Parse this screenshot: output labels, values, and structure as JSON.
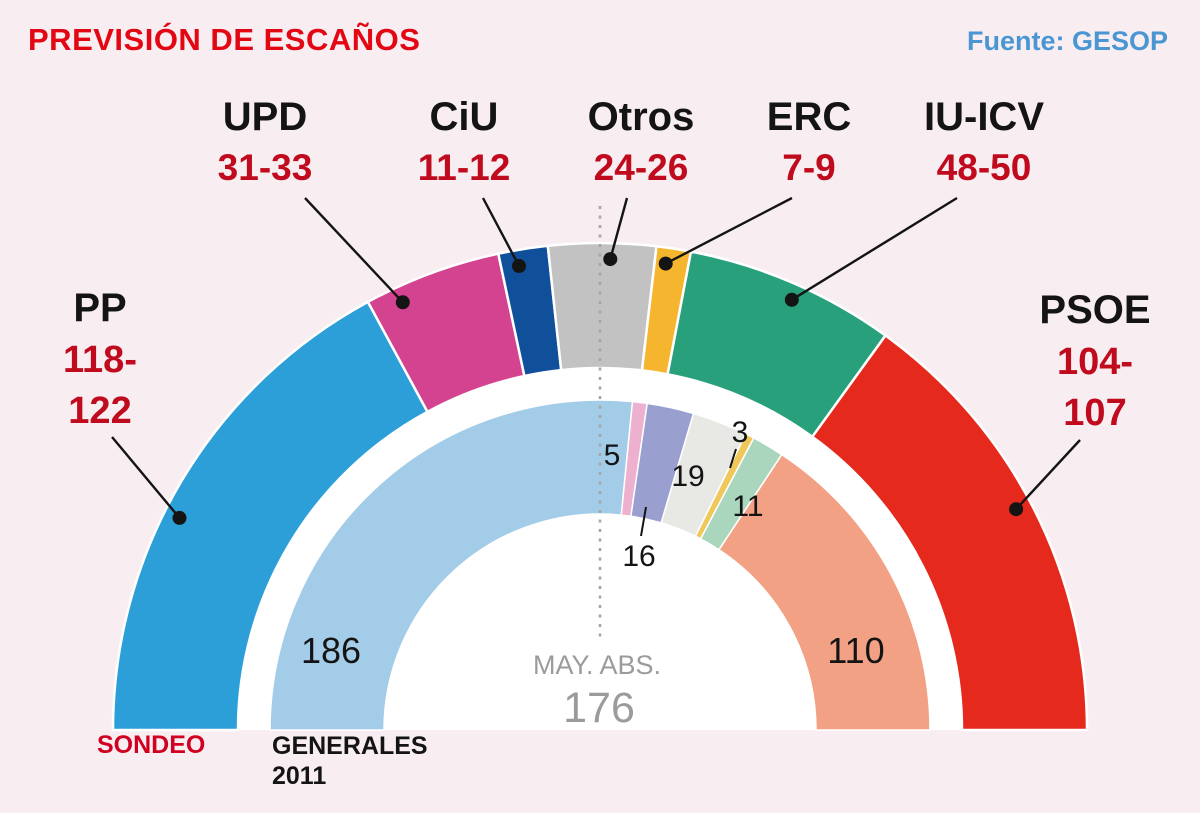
{
  "header": {
    "title": "PREVISIÓN DE ESCAÑOS",
    "source": "Fuente: GESOP"
  },
  "colors": {
    "background": "#f8eef2",
    "title_red": "#e30613",
    "source_blue": "#4a96d2",
    "range_red": "#c00a1d",
    "text_black": "#141414",
    "majority_gray": "#9b9b9b",
    "sondeo_red": "#d10020"
  },
  "chart_data": {
    "type": "hemicycle",
    "title": "PREVISIÓN DE ESCAÑOS",
    "total_seats": 350,
    "majority_label": "MAY. ABS.",
    "majority_value": "176",
    "rings": [
      {
        "name": "SONDEO",
        "segments": [
          {
            "party": "PP",
            "range": "118-122",
            "range_lines": [
              "118-",
              "122"
            ],
            "seats": 120,
            "color": "#2c9fd8"
          },
          {
            "party": "UPD",
            "range": "31-33",
            "seats": 32,
            "color": "#d4438f"
          },
          {
            "party": "CiU",
            "range": "11-12",
            "seats": 11.5,
            "color": "#10509b"
          },
          {
            "party": "Otros",
            "range": "24-26",
            "seats": 25,
            "color": "#c2c2c2"
          },
          {
            "party": "ERC",
            "range": "7-9",
            "seats": 8,
            "color": "#f6b52e"
          },
          {
            "party": "IU-ICV",
            "range": "48-50",
            "seats": 49,
            "color": "#27a07b"
          },
          {
            "party": "PSOE",
            "range": "104-107",
            "range_lines": [
              "104-",
              "107"
            ],
            "seats": 105.5,
            "color": "#e5291c"
          }
        ]
      },
      {
        "name": "GENERALES 2011",
        "segments": [
          {
            "party": "PP",
            "seats": 186,
            "color": "#a3cce8"
          },
          {
            "party": "UPD",
            "seats": 5,
            "color": "#eeb0cf"
          },
          {
            "party": "CiU",
            "seats": 16,
            "color": "#99a0d0"
          },
          {
            "party": "Otros",
            "seats": 19,
            "color": "#e8e8e5"
          },
          {
            "party": "ERC",
            "seats": 3,
            "color": "#f0c75a"
          },
          {
            "party": "IU-ICV",
            "seats": 11,
            "color": "#a9d6bd"
          },
          {
            "party": "PSOE",
            "seats": 110,
            "color": "#f3a184"
          }
        ]
      }
    ]
  }
}
